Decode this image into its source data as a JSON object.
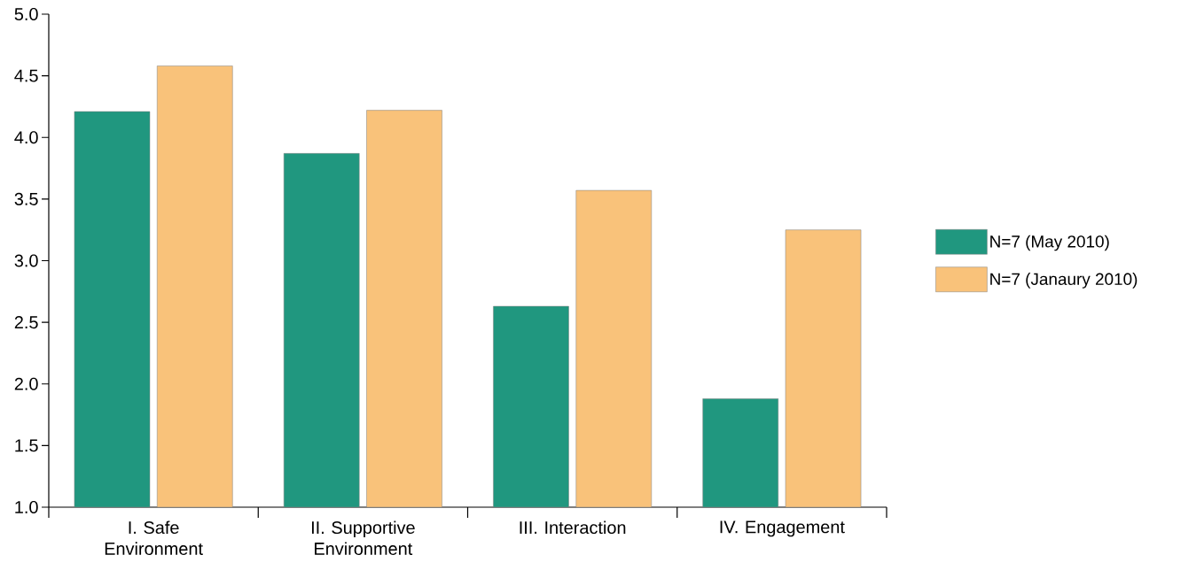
{
  "chart_data": {
    "type": "bar",
    "categories": [
      "I. Safe Environment",
      "II. Supportive Environment",
      "III. Interaction",
      "IV. Engagement"
    ],
    "series": [
      {
        "name": "N=7 (May 2010)",
        "color": "#20977f",
        "values": [
          4.21,
          3.87,
          2.63,
          1.88
        ]
      },
      {
        "name": "N=7 (Janaury 2010)",
        "color": "#f9c27a",
        "values": [
          4.58,
          4.22,
          3.57,
          3.25
        ]
      }
    ],
    "ylim": [
      1.0,
      5.0
    ],
    "yticks": [
      {
        "value": 1.0,
        "label": "1.0"
      },
      {
        "value": 1.5,
        "label": "1.5"
      },
      {
        "value": 2.0,
        "label": "2.0"
      },
      {
        "value": 2.5,
        "label": "2.5"
      },
      {
        "value": 3.0,
        "label": "3.0"
      },
      {
        "value": 3.5,
        "label": "3.5"
      },
      {
        "value": 4.0,
        "label": "4.0"
      },
      {
        "value": 4.5,
        "label": "4.5"
      },
      {
        "value": 5.0,
        "label": "5.0"
      }
    ],
    "legend": "right",
    "grid": false
  }
}
